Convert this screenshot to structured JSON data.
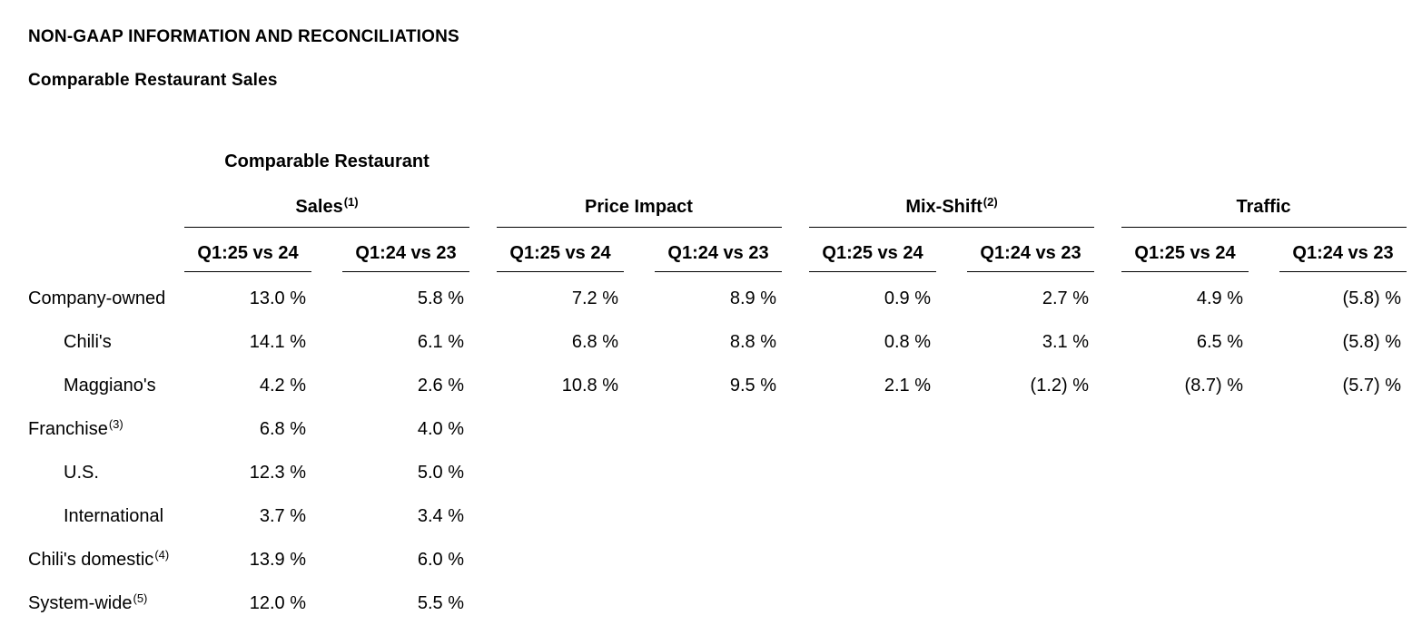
{
  "page": {
    "title": "NON-GAAP INFORMATION AND RECONCILIATIONS",
    "subtitle": "Comparable Restaurant Sales"
  },
  "table": {
    "group_header_top": "Comparable Restaurant",
    "groups": [
      {
        "title": "Sales",
        "sup": "(1)"
      },
      {
        "title": "Price Impact",
        "sup": ""
      },
      {
        "title": "Mix-Shift",
        "sup": "(2)"
      },
      {
        "title": "Traffic",
        "sup": ""
      }
    ],
    "period_headers": [
      "Q1:25 vs 24",
      "Q1:24 vs 23"
    ],
    "rows": [
      {
        "label": "Company-owned",
        "sup": "",
        "indent": false,
        "cells": [
          "13.0 %",
          "5.8 %",
          "7.2 %",
          "8.9 %",
          "0.9 %",
          "2.7 %",
          "4.9 %",
          "(5.8) %"
        ]
      },
      {
        "label": "Chili's",
        "sup": "",
        "indent": true,
        "cells": [
          "14.1 %",
          "6.1 %",
          "6.8 %",
          "8.8 %",
          "0.8 %",
          "3.1 %",
          "6.5 %",
          "(5.8) %"
        ]
      },
      {
        "label": "Maggiano's",
        "sup": "",
        "indent": true,
        "cells": [
          "4.2 %",
          "2.6 %",
          "10.8 %",
          "9.5 %",
          "2.1 %",
          "(1.2) %",
          "(8.7) %",
          "(5.7) %"
        ]
      },
      {
        "label": "Franchise",
        "sup": "(3)",
        "indent": false,
        "cells": [
          "6.8 %",
          "4.0 %",
          "",
          "",
          "",
          "",
          "",
          ""
        ]
      },
      {
        "label": "U.S.",
        "sup": "",
        "indent": true,
        "cells": [
          "12.3 %",
          "5.0 %",
          "",
          "",
          "",
          "",
          "",
          ""
        ]
      },
      {
        "label": "International",
        "sup": "",
        "indent": true,
        "cells": [
          "3.7 %",
          "3.4 %",
          "",
          "",
          "",
          "",
          "",
          ""
        ]
      },
      {
        "label": "Chili's domestic",
        "sup": "(4)",
        "indent": false,
        "cells": [
          "13.9 %",
          "6.0 %",
          "",
          "",
          "",
          "",
          "",
          ""
        ]
      },
      {
        "label": "System-wide",
        "sup": "(5)",
        "indent": false,
        "cells": [
          "12.0 %",
          "5.5 %",
          "",
          "",
          "",
          "",
          "",
          ""
        ]
      }
    ]
  },
  "chart_data": {
    "type": "table",
    "title": "Comparable Restaurant Sales",
    "unit": "percent",
    "column_groups": [
      {
        "name": "Comparable Restaurant Sales (1)",
        "columns": [
          "Q1:25 vs 24",
          "Q1:24 vs 23"
        ]
      },
      {
        "name": "Price Impact",
        "columns": [
          "Q1:25 vs 24",
          "Q1:24 vs 23"
        ]
      },
      {
        "name": "Mix-Shift (2)",
        "columns": [
          "Q1:25 vs 24",
          "Q1:24 vs 23"
        ]
      },
      {
        "name": "Traffic",
        "columns": [
          "Q1:25 vs 24",
          "Q1:24 vs 23"
        ]
      }
    ],
    "rows": [
      {
        "label": "Company-owned",
        "comparable_restaurant_sales": [
          13.0,
          5.8
        ],
        "price_impact": [
          7.2,
          8.9
        ],
        "mix_shift": [
          0.9,
          2.7
        ],
        "traffic": [
          4.9,
          -5.8
        ]
      },
      {
        "label": "Chili's",
        "comparable_restaurant_sales": [
          14.1,
          6.1
        ],
        "price_impact": [
          6.8,
          8.8
        ],
        "mix_shift": [
          0.8,
          3.1
        ],
        "traffic": [
          6.5,
          -5.8
        ]
      },
      {
        "label": "Maggiano's",
        "comparable_restaurant_sales": [
          4.2,
          2.6
        ],
        "price_impact": [
          10.8,
          9.5
        ],
        "mix_shift": [
          2.1,
          -1.2
        ],
        "traffic": [
          -8.7,
          -5.7
        ]
      },
      {
        "label": "Franchise (3)",
        "comparable_restaurant_sales": [
          6.8,
          4.0
        ],
        "price_impact": null,
        "mix_shift": null,
        "traffic": null
      },
      {
        "label": "U.S.",
        "comparable_restaurant_sales": [
          12.3,
          5.0
        ],
        "price_impact": null,
        "mix_shift": null,
        "traffic": null
      },
      {
        "label": "International",
        "comparable_restaurant_sales": [
          3.7,
          3.4
        ],
        "price_impact": null,
        "mix_shift": null,
        "traffic": null
      },
      {
        "label": "Chili's domestic (4)",
        "comparable_restaurant_sales": [
          13.9,
          6.0
        ],
        "price_impact": null,
        "mix_shift": null,
        "traffic": null
      },
      {
        "label": "System-wide (5)",
        "comparable_restaurant_sales": [
          12.0,
          5.5
        ],
        "price_impact": null,
        "mix_shift": null,
        "traffic": null
      }
    ]
  }
}
